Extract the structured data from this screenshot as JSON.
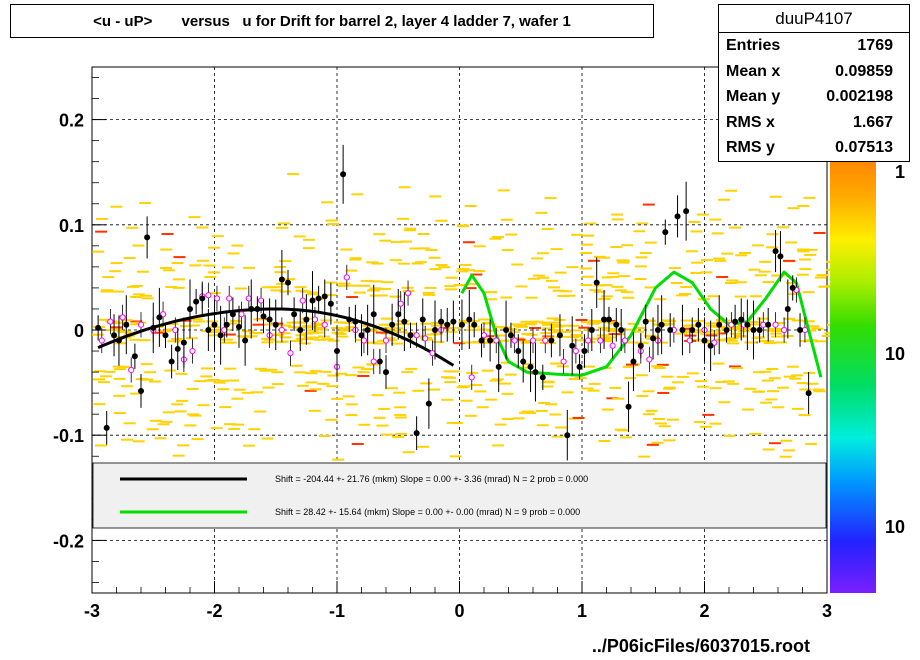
{
  "title": "<u - uP>       versus   u for Drift for barrel 2, layer 4 ladder 7, wafer 1",
  "stats": {
    "name": "duuP4107",
    "rows": [
      {
        "key": "Entries",
        "value": "1769"
      },
      {
        "key": "Mean x",
        "value": "0.09859"
      },
      {
        "key": "Mean y",
        "value": "0.002198"
      },
      {
        "key": "RMS x",
        "value": "1.667"
      },
      {
        "key": "RMS y",
        "value": "0.07513"
      }
    ]
  },
  "footer": "../P06icFiles/6037015.root",
  "colors": {
    "fit1": "#000000",
    "fit2": "#00dd00",
    "points": "#000000",
    "profile": "#ff00ff",
    "hist": "#ffd200",
    "hist_peak": "#ff3300"
  },
  "chart_data": {
    "type": "scatter",
    "xlim": [
      -3,
      3
    ],
    "ylim": [
      -0.25,
      0.25
    ],
    "x_ticks": [
      -3,
      -2,
      -1,
      0,
      1,
      2,
      3
    ],
    "y_ticks": [
      0.2,
      0.1,
      0,
      -0.1,
      -0.2
    ],
    "x_tick_labels": [
      "-3",
      "-2",
      "-1",
      "0",
      "1",
      "2",
      "3"
    ],
    "y_tick_labels": [
      "0.2",
      "0.1",
      "0",
      "-0.1",
      "-0.2"
    ],
    "grid": true,
    "colorbar_labels": [
      "1",
      "10",
      "10"
    ],
    "legend": [
      {
        "color": "#000000",
        "text": "Shift =  -204.44 +- 21.76 (mkm) Slope =     0.00 +- 3.36 (mrad)  N = 2 prob = 0.000"
      },
      {
        "color": "#00dd00",
        "text": "Shift =    28.42 +- 15.64 (mkm) Slope =     0.00 +- 0.00 (mrad)  N = 9 prob = 0.000"
      }
    ],
    "series": [
      {
        "kind": "points",
        "values": [
          [
            -2.95,
            0.002
          ],
          [
            -2.88,
            -0.093
          ],
          [
            -2.82,
            -0.005
          ],
          [
            -2.78,
            -0.01
          ],
          [
            -2.72,
            0.005
          ],
          [
            -2.65,
            -0.025
          ],
          [
            -2.6,
            -0.058
          ],
          [
            -2.55,
            0.088
          ],
          [
            -2.5,
            0.002
          ],
          [
            -2.45,
            0.012
          ],
          [
            -2.4,
            -0.005
          ],
          [
            -2.35,
            -0.03
          ],
          [
            -2.3,
            -0.018
          ],
          [
            -2.25,
            -0.012
          ],
          [
            -2.2,
            0.02
          ],
          [
            -2.15,
            0.027
          ],
          [
            -2.1,
            0.03
          ],
          [
            -2.05,
            0.0
          ],
          [
            -2.0,
            0.005
          ],
          [
            -1.95,
            -0.005
          ],
          [
            -1.9,
            0.005
          ],
          [
            -1.85,
            0.015
          ],
          [
            -1.8,
            0.003
          ],
          [
            -1.75,
            -0.01
          ],
          [
            -1.7,
            0.02
          ],
          [
            -1.65,
            0.02
          ],
          [
            -1.6,
            0.013
          ],
          [
            -1.55,
            0.01
          ],
          [
            -1.5,
            0.005
          ],
          [
            -1.45,
            0.048
          ],
          [
            -1.4,
            0.045
          ],
          [
            -1.35,
            0.015
          ],
          [
            -1.3,
            0.0
          ],
          [
            -1.25,
            0.01
          ],
          [
            -1.2,
            0.028
          ],
          [
            -1.15,
            0.03
          ],
          [
            -1.1,
            0.032
          ],
          [
            -1.05,
            0.025
          ],
          [
            -1.0,
            -0.02
          ],
          [
            -0.95,
            0.148
          ],
          [
            -0.9,
            0.01
          ],
          [
            -0.85,
            0.008
          ],
          [
            -0.8,
            -0.005
          ],
          [
            -0.75,
            0.0
          ],
          [
            -0.7,
            0.015
          ],
          [
            -0.65,
            -0.03
          ],
          [
            -0.6,
            -0.04
          ],
          [
            -0.55,
            0.005
          ],
          [
            -0.5,
            0.015
          ],
          [
            -0.45,
            0.008
          ],
          [
            -0.4,
            -0.005
          ],
          [
            -0.35,
            -0.098
          ],
          [
            -0.3,
            0.01
          ],
          [
            -0.25,
            -0.07
          ],
          [
            -0.2,
            0.0
          ],
          [
            -0.15,
            0.008
          ],
          [
            -0.1,
            0.005
          ],
          [
            -0.05,
            0.008
          ],
          [
            0.02,
            0.005
          ],
          [
            0.08,
            0.01
          ],
          [
            0.12,
            0.005
          ],
          [
            0.18,
            -0.01
          ],
          [
            0.25,
            -0.01
          ],
          [
            0.32,
            -0.035
          ],
          [
            0.38,
            0.0
          ],
          [
            0.42,
            -0.005
          ],
          [
            0.48,
            -0.02
          ],
          [
            0.52,
            -0.03
          ],
          [
            0.58,
            -0.035
          ],
          [
            0.62,
            -0.04
          ],
          [
            0.68,
            -0.045
          ],
          [
            0.75,
            -0.01
          ],
          [
            0.82,
            -0.005
          ],
          [
            0.88,
            -0.1
          ],
          [
            0.92,
            -0.015
          ],
          [
            0.98,
            -0.035
          ],
          [
            1.02,
            -0.02
          ],
          [
            1.08,
            0.0
          ],
          [
            1.12,
            0.045
          ],
          [
            1.18,
            0.01
          ],
          [
            1.22,
            0.01
          ],
          [
            1.28,
            0.005
          ],
          [
            1.32,
            0.0
          ],
          [
            1.38,
            -0.073
          ],
          [
            1.42,
            -0.03
          ],
          [
            1.48,
            -0.015
          ],
          [
            1.52,
            0.008
          ],
          [
            1.58,
            -0.008
          ],
          [
            1.62,
            0.0
          ],
          [
            1.65,
            0.005
          ],
          [
            1.68,
            0.093
          ],
          [
            1.72,
            0.0
          ],
          [
            1.78,
            0.108
          ],
          [
            1.82,
            0.0
          ],
          [
            1.85,
            0.113
          ],
          [
            1.9,
            0.0
          ],
          [
            1.95,
            0.005
          ],
          [
            2.0,
            -0.01
          ],
          [
            2.05,
            -0.015
          ],
          [
            2.12,
            0.005
          ],
          [
            2.18,
            0.0
          ],
          [
            2.25,
            0.008
          ],
          [
            2.3,
            0.01
          ],
          [
            2.35,
            0.005
          ],
          [
            2.4,
            0.0
          ],
          [
            2.45,
            0.0
          ],
          [
            2.52,
            0.005
          ],
          [
            2.58,
            0.075
          ],
          [
            2.62,
            0.07
          ],
          [
            2.68,
            0.02
          ],
          [
            2.72,
            0.04
          ],
          [
            2.78,
            0.0
          ],
          [
            2.85,
            -0.06
          ]
        ]
      },
      {
        "kind": "profile",
        "values": [
          [
            -2.92,
            -0.01
          ],
          [
            -2.85,
            0.008
          ],
          [
            -2.75,
            0.012
          ],
          [
            -2.68,
            -0.038
          ],
          [
            -2.6,
            0.005
          ],
          [
            -2.5,
            0.0
          ],
          [
            -2.42,
            0.015
          ],
          [
            -2.32,
            0.0
          ],
          [
            -2.25,
            -0.028
          ],
          [
            -2.18,
            -0.02
          ],
          [
            -2.1,
            0.032
          ],
          [
            -2.05,
            0.033
          ],
          [
            -1.98,
            0.03
          ],
          [
            -1.92,
            0.0
          ],
          [
            -1.88,
            0.03
          ],
          [
            -1.78,
            0.015
          ],
          [
            -1.72,
            0.03
          ],
          [
            -1.62,
            0.028
          ],
          [
            -1.55,
            -0.005
          ],
          [
            -1.45,
            0.0
          ],
          [
            -1.38,
            -0.022
          ],
          [
            -1.28,
            0.028
          ],
          [
            -1.18,
            0.01
          ],
          [
            -1.1,
            0.005
          ],
          [
            -1.0,
            -0.035
          ],
          [
            -0.92,
            0.05
          ],
          [
            -0.85,
            0.0
          ],
          [
            -0.78,
            -0.01
          ],
          [
            -0.7,
            -0.03
          ],
          [
            -0.6,
            -0.01
          ],
          [
            -0.48,
            0.025
          ],
          [
            -0.42,
            0.035
          ],
          [
            -0.35,
            -0.005
          ],
          [
            -0.28,
            -0.008
          ],
          [
            -0.22,
            -0.022
          ],
          [
            -0.15,
            0.0
          ],
          [
            0.1,
            -0.045
          ],
          [
            0.2,
            -0.005
          ],
          [
            0.3,
            -0.01
          ],
          [
            0.45,
            -0.01
          ],
          [
            0.6,
            -0.01
          ],
          [
            0.7,
            -0.01
          ],
          [
            0.85,
            -0.03
          ],
          [
            0.95,
            -0.02
          ],
          [
            1.05,
            -0.01
          ],
          [
            1.15,
            -0.01
          ],
          [
            1.25,
            -0.015
          ],
          [
            1.35,
            -0.01
          ],
          [
            1.48,
            -0.02
          ],
          [
            1.55,
            -0.028
          ],
          [
            1.62,
            -0.01
          ],
          [
            1.75,
            0.0
          ],
          [
            1.88,
            -0.01
          ],
          [
            2.0,
            0.0
          ],
          [
            2.08,
            -0.012
          ],
          [
            2.22,
            0.005
          ],
          [
            2.32,
            0.005
          ],
          [
            2.48,
            0.005
          ],
          [
            2.58,
            0.005
          ],
          [
            2.65,
            0.0
          ],
          [
            2.75,
            0.038
          ],
          [
            2.82,
            0.0
          ]
        ]
      }
    ]
  }
}
